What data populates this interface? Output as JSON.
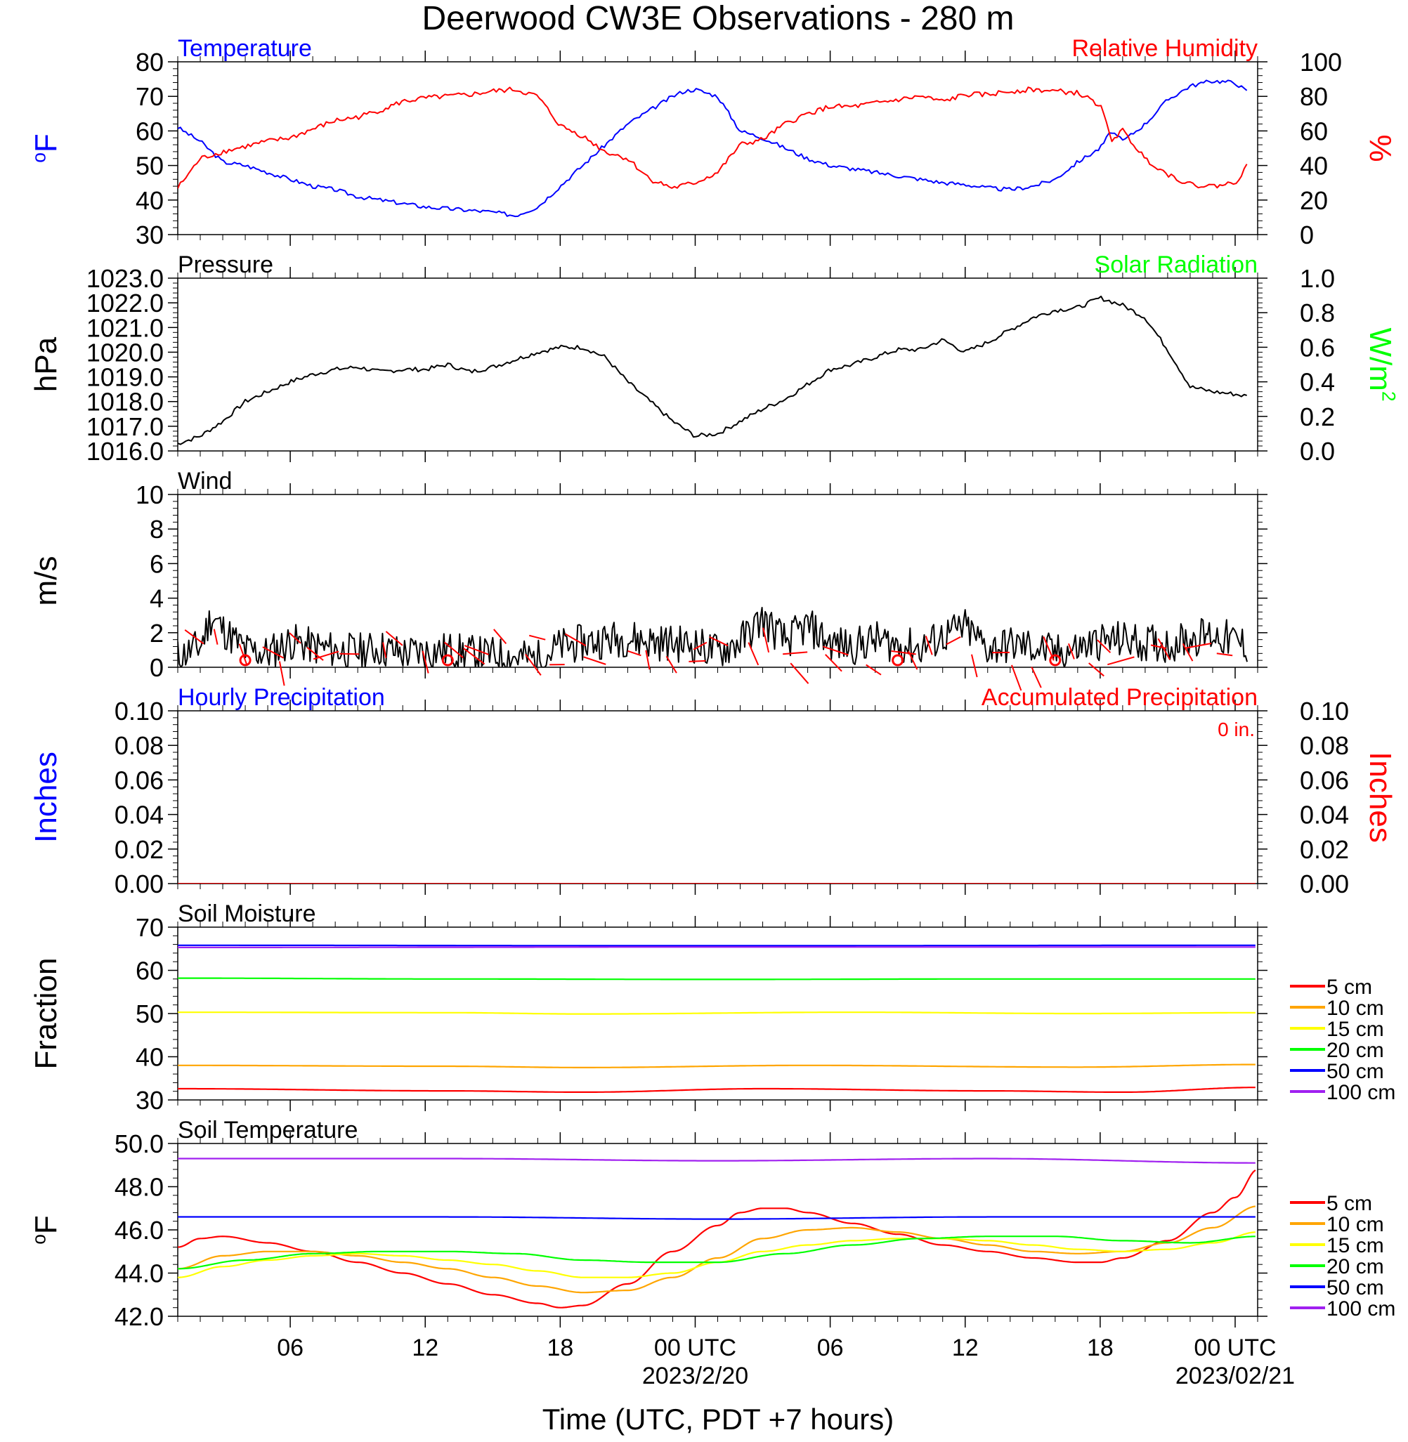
{
  "title": "Deerwood CW3E Observations - 280 m",
  "colors": {
    "black": "#000000",
    "red": "#ff0000",
    "blue": "#0000ff",
    "green": "#00ff00",
    "orange": "#ffa500",
    "yellow": "#ffff00",
    "purple": "#a020f0"
  },
  "x_axis": {
    "label": "Time (UTC, PDT +7 hours)",
    "range_hours": [
      0,
      48
    ],
    "ticks": [
      {
        "h": 5,
        "label": "06",
        "sub": ""
      },
      {
        "h": 11,
        "label": "12",
        "sub": ""
      },
      {
        "h": 17,
        "label": "18",
        "sub": ""
      },
      {
        "h": 23,
        "label": "00 UTC",
        "sub": "2023/2/20"
      },
      {
        "h": 29,
        "label": "06",
        "sub": ""
      },
      {
        "h": 35,
        "label": "12",
        "sub": ""
      },
      {
        "h": 41,
        "label": "18",
        "sub": ""
      },
      {
        "h": 47,
        "label": "00 UTC",
        "sub": "2023/02/21"
      }
    ]
  },
  "chart_data": [
    {
      "type": "line",
      "panel": "temperature-humidity",
      "left_title": "Temperature",
      "right_title": "Relative Humidity",
      "ylabel_left": "oF",
      "ylabel_right": "%",
      "ylim_left": [
        30,
        80
      ],
      "ylim_right": [
        0,
        100
      ],
      "yticks_left": [
        "30",
        "40",
        "50",
        "60",
        "70",
        "80"
      ],
      "yticks_right": [
        "0",
        "20",
        "40",
        "60",
        "80",
        "100"
      ],
      "series": [
        {
          "name": "Temperature",
          "color": "#0000ff",
          "axis": "left",
          "x": [
            0,
            1,
            2,
            3,
            4,
            5,
            6,
            7,
            8,
            9,
            10,
            11,
            12,
            13,
            14,
            15,
            16,
            17,
            18,
            19,
            20,
            21,
            22,
            22.5,
            23,
            24,
            25,
            26,
            27,
            28,
            29,
            30,
            31,
            32,
            33,
            34,
            35,
            36,
            37,
            38,
            39,
            40,
            41,
            41.5,
            42,
            43,
            44,
            45,
            46,
            47,
            47.6
          ],
          "y": [
            61,
            57,
            51,
            50,
            48,
            46,
            44,
            43,
            41,
            40,
            39,
            38,
            37.5,
            37,
            36.5,
            35.5,
            38,
            44,
            50,
            56,
            62,
            66,
            70,
            71.5,
            72,
            70,
            60,
            58,
            55,
            52,
            50,
            49,
            48,
            47,
            46,
            45,
            44.5,
            43.5,
            43,
            44,
            46,
            51,
            55,
            60,
            57,
            62,
            69,
            73,
            74.5,
            74,
            71
          ]
        },
        {
          "name": "Relative Humidity",
          "color": "#ff0000",
          "axis": "right",
          "x": [
            0,
            1,
            2,
            3,
            4,
            5,
            6,
            7,
            8,
            9,
            10,
            11,
            12,
            13,
            14,
            15,
            16,
            17,
            18,
            19,
            20,
            21,
            22,
            23,
            24,
            25,
            26,
            27,
            28,
            29,
            30,
            31,
            32,
            33,
            34,
            35,
            36,
            37,
            38,
            39,
            40,
            41,
            41.5,
            42,
            43,
            44,
            45,
            46,
            47,
            47.6
          ],
          "y": [
            27,
            44,
            48,
            51,
            54,
            56,
            61,
            66,
            68,
            72,
            77,
            79,
            80,
            81,
            83,
            84,
            80,
            63,
            57,
            48,
            44,
            32,
            27,
            30,
            36,
            52,
            55,
            64,
            70,
            74,
            74,
            76,
            78,
            80,
            77,
            81,
            81,
            83,
            84,
            83,
            82,
            75,
            55,
            60,
            44,
            35,
            29,
            28,
            30,
            41
          ]
        }
      ]
    },
    {
      "type": "line",
      "panel": "pressure-solar",
      "left_title": "Pressure",
      "right_title": "Solar Radiation",
      "ylabel_left": "hPa",
      "ylabel_right": "W/m2",
      "ylim_left": [
        1016.0,
        1023.0
      ],
      "ylim_right": [
        0.0,
        1.0
      ],
      "yticks_left": [
        "1016.0",
        "1017.0",
        "1018.0",
        "1019.0",
        "1020.0",
        "1021.0",
        "1022.0",
        "1023.0"
      ],
      "yticks_right": [
        "0.0",
        "0.2",
        "0.4",
        "0.6",
        "0.8",
        "1.0"
      ],
      "series": [
        {
          "name": "Pressure",
          "color": "#000000",
          "axis": "left",
          "x": [
            0,
            1,
            2,
            3,
            4,
            5,
            6,
            7,
            8,
            9,
            10,
            11,
            12,
            13,
            14,
            15,
            16,
            17,
            18,
            19,
            20,
            21,
            22,
            23,
            24,
            25,
            26,
            27,
            28,
            29,
            30,
            31,
            32,
            33,
            34,
            35,
            36,
            37,
            38,
            39,
            40,
            41,
            42,
            43,
            44,
            45,
            46,
            47,
            47.6
          ],
          "y": [
            1016.3,
            1016.6,
            1017.2,
            1018.0,
            1018.4,
            1018.8,
            1019.1,
            1019.3,
            1019.4,
            1019.2,
            1019.3,
            1019.3,
            1019.5,
            1019.2,
            1019.4,
            1019.7,
            1020.0,
            1020.2,
            1020.2,
            1019.8,
            1018.8,
            1018.0,
            1017.2,
            1016.6,
            1016.7,
            1017.2,
            1017.7,
            1018.1,
            1018.7,
            1019.3,
            1019.5,
            1019.8,
            1020.1,
            1020.1,
            1020.5,
            1020.0,
            1020.4,
            1020.9,
            1021.4,
            1021.7,
            1021.8,
            1022.2,
            1021.9,
            1021.4,
            1020.1,
            1018.6,
            1018.4,
            1018.3,
            1018.2
          ]
        }
      ]
    },
    {
      "type": "line",
      "panel": "wind",
      "left_title": "Wind",
      "ylabel_left": "m/s",
      "ylim_left": [
        0,
        10
      ],
      "yticks_left": [
        "0",
        "2",
        "4",
        "6",
        "8",
        "10"
      ],
      "series": [
        {
          "name": "Wind",
          "color": "#000000",
          "axis": "left",
          "x": [
            0,
            1,
            1.5,
            2,
            3,
            4,
            5,
            6,
            7,
            8,
            9,
            10,
            11,
            12,
            13,
            14,
            15,
            16,
            17,
            18,
            19,
            20,
            21,
            22,
            23,
            24,
            25,
            26,
            27,
            28,
            29,
            30,
            31,
            32,
            33,
            34,
            35,
            36,
            37,
            38,
            39,
            40,
            41,
            42,
            43,
            44,
            45,
            46,
            47,
            47.6
          ],
          "y": [
            0.6,
            1.2,
            3.0,
            2.2,
            1.0,
            0.8,
            1.5,
            1.2,
            1.0,
            0.9,
            1.1,
            0.8,
            0.9,
            1.0,
            0.8,
            0.7,
            0.6,
            0.5,
            1.2,
            1.4,
            1.6,
            1.7,
            1.5,
            1.4,
            1.3,
            0.9,
            1.5,
            2.8,
            1.5,
            2.4,
            1.4,
            1.2,
            1.6,
            1.3,
            1.1,
            1.8,
            2.3,
            1.1,
            1.3,
            1.2,
            0.8,
            1.1,
            1.5,
            1.6,
            1.4,
            1.3,
            1.7,
            1.9,
            1.5,
            1.2
          ]
        }
      ],
      "calm_markers_hours": [
        3.0,
        12.0,
        32.0,
        39.0
      ]
    },
    {
      "type": "line",
      "panel": "precipitation",
      "left_title": "Hourly Precipitation",
      "right_title": "Accumulated Precipitation",
      "annotation": "0 in.",
      "ylabel_left": "Inches",
      "ylabel_right": "Inches",
      "ylim_left": [
        0,
        0.1
      ],
      "ylim_right": [
        0,
        0.1
      ],
      "yticks_left": [
        "0.00",
        "0.02",
        "0.04",
        "0.06",
        "0.08",
        "0.10"
      ],
      "yticks_right": [
        "0.00",
        "0.02",
        "0.04",
        "0.06",
        "0.08",
        "0.10"
      ],
      "series": [
        {
          "name": "Accumulated Precipitation",
          "color": "#ff0000",
          "axis": "right",
          "x": [
            0,
            48
          ],
          "y": [
            0,
            0
          ]
        }
      ]
    },
    {
      "type": "line",
      "panel": "soil-moisture",
      "left_title": "Soil Moisture",
      "ylabel_left": "Fraction",
      "ylim_left": [
        30,
        70
      ],
      "yticks_left": [
        "30",
        "40",
        "50",
        "60",
        "70"
      ],
      "series": [
        {
          "name": "5 cm",
          "color": "#ff0000",
          "x": [
            0,
            12,
            18,
            26,
            36,
            42,
            48
          ],
          "y": [
            32.6,
            32.1,
            31.8,
            32.6,
            32.1,
            31.8,
            32.9
          ]
        },
        {
          "name": "10 cm",
          "color": "#ffa500",
          "x": [
            0,
            12,
            18,
            28,
            40,
            48
          ],
          "y": [
            38.0,
            37.8,
            37.5,
            38.0,
            37.6,
            38.2
          ]
        },
        {
          "name": "15 cm",
          "color": "#ffff00",
          "x": [
            0,
            12,
            18,
            30,
            40,
            48
          ],
          "y": [
            50.3,
            50.2,
            49.9,
            50.3,
            50.0,
            50.2
          ]
        },
        {
          "name": "20 cm",
          "color": "#00ff00",
          "x": [
            0,
            12,
            24,
            36,
            48
          ],
          "y": [
            58.2,
            58.0,
            57.9,
            58.0,
            58.0
          ]
        },
        {
          "name": "50 cm",
          "color": "#0000ff",
          "x": [
            0,
            24,
            48
          ],
          "y": [
            65.8,
            65.7,
            65.8
          ]
        },
        {
          "name": "100 cm",
          "color": "#a020f0",
          "x": [
            0,
            24,
            48
          ],
          "y": [
            65.3,
            65.4,
            65.4
          ]
        }
      ]
    },
    {
      "type": "line",
      "panel": "soil-temperature",
      "left_title": "Soil Temperature",
      "ylabel_left": "oF",
      "ylim_left": [
        42.0,
        50.0
      ],
      "yticks_left": [
        "42.0",
        "44.0",
        "46.0",
        "48.0",
        "50.0"
      ],
      "series": [
        {
          "name": "5 cm",
          "color": "#ff0000",
          "x": [
            0,
            1,
            2,
            4,
            6,
            8,
            10,
            12,
            14,
            16,
            17,
            18,
            20,
            22,
            24,
            25,
            26,
            27,
            28,
            30,
            32,
            34,
            36,
            38,
            40,
            41,
            42,
            44,
            46,
            47,
            48
          ],
          "y": [
            45.2,
            45.6,
            45.7,
            45.4,
            45.0,
            44.5,
            44.0,
            43.5,
            43.0,
            42.6,
            42.4,
            42.5,
            43.5,
            45.0,
            46.2,
            46.8,
            47.0,
            47.0,
            46.8,
            46.3,
            45.8,
            45.3,
            45.0,
            44.7,
            44.5,
            44.5,
            44.7,
            45.5,
            46.8,
            47.5,
            48.8
          ]
        },
        {
          "name": "10 cm",
          "color": "#ffa500",
          "x": [
            0,
            2,
            4,
            6,
            8,
            10,
            12,
            14,
            16,
            18,
            20,
            22,
            24,
            26,
            28,
            30,
            32,
            34,
            36,
            38,
            40,
            42,
            44,
            46,
            48
          ],
          "y": [
            44.2,
            44.8,
            45.0,
            45.0,
            44.8,
            44.5,
            44.2,
            43.8,
            43.4,
            43.1,
            43.2,
            43.8,
            44.7,
            45.6,
            46.0,
            46.1,
            45.9,
            45.6,
            45.3,
            45.0,
            44.9,
            45.0,
            45.4,
            46.1,
            47.1
          ]
        },
        {
          "name": "15 cm",
          "color": "#ffff00",
          "x": [
            0,
            2,
            4,
            6,
            8,
            10,
            12,
            14,
            16,
            18,
            20,
            22,
            24,
            26,
            28,
            30,
            32,
            34,
            36,
            38,
            40,
            42,
            44,
            46,
            48
          ],
          "y": [
            43.8,
            44.3,
            44.6,
            44.8,
            44.9,
            44.8,
            44.6,
            44.4,
            44.1,
            43.8,
            43.8,
            44.0,
            44.5,
            45.0,
            45.3,
            45.5,
            45.6,
            45.6,
            45.5,
            45.3,
            45.1,
            45.0,
            45.1,
            45.4,
            45.9
          ]
        },
        {
          "name": "20 cm",
          "color": "#00ff00",
          "x": [
            0,
            3,
            6,
            9,
            12,
            15,
            18,
            21,
            24,
            27,
            30,
            33,
            36,
            39,
            42,
            45,
            48
          ],
          "y": [
            44.2,
            44.6,
            44.9,
            45.0,
            45.0,
            44.9,
            44.6,
            44.5,
            44.5,
            44.9,
            45.3,
            45.6,
            45.7,
            45.7,
            45.5,
            45.4,
            45.7
          ]
        },
        {
          "name": "50 cm",
          "color": "#0000ff",
          "x": [
            0,
            12,
            24,
            36,
            48
          ],
          "y": [
            46.6,
            46.6,
            46.5,
            46.6,
            46.6
          ]
        },
        {
          "name": "100 cm",
          "color": "#a020f0",
          "x": [
            0,
            12,
            24,
            36,
            48
          ],
          "y": [
            49.3,
            49.3,
            49.2,
            49.3,
            49.1
          ]
        }
      ]
    }
  ]
}
